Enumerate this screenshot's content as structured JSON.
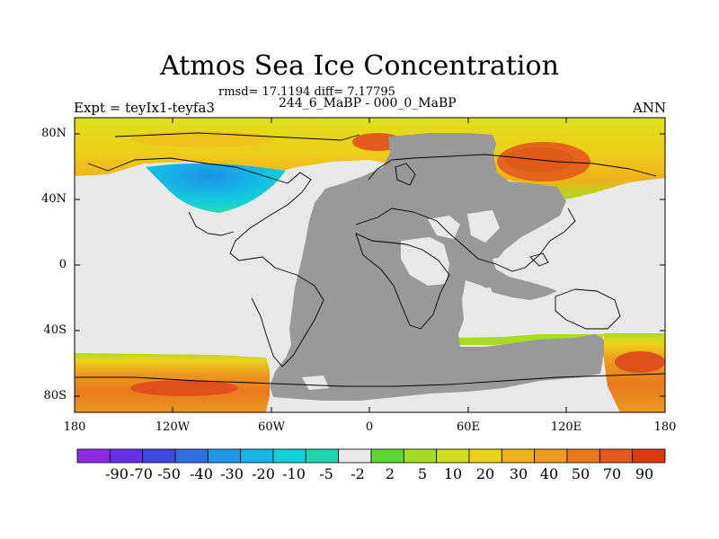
{
  "title": "Atmos Sea Ice Concentration",
  "stats": "rmsd= 17.1194 diff= 7.17795",
  "subtitle": "244_6_MaBP - 000_0_MaBP",
  "experiment": "Expt = teyIx1-teyfa3",
  "season": "ANN",
  "y_ticks": [
    "80N",
    "40N",
    "0",
    "40S",
    "80S"
  ],
  "x_ticks": [
    "180",
    "120W",
    "60W",
    "0",
    "60E",
    "120E",
    "180"
  ],
  "colorbar": {
    "labels": [
      "-90",
      "-70",
      "-50",
      "-40",
      "-30",
      "-20",
      "-10",
      "-5",
      "-2",
      "2",
      "5",
      "10",
      "20",
      "30",
      "40",
      "50",
      "70",
      "90"
    ],
    "colors": [
      "#8a2be2",
      "#6a2ee6",
      "#3f48e0",
      "#2f6fe0",
      "#1f97e6",
      "#14b7e6",
      "#12cfd8",
      "#1fd6b0",
      "#e8e8e8",
      "#5fd633",
      "#a8dc20",
      "#cfe020",
      "#ecd21a",
      "#f0b21a",
      "#ec9a20",
      "#e8781c",
      "#e45a1a",
      "#dc3a10"
    ]
  },
  "colors": {
    "land": "#999999",
    "no_change": "#e8e8e8"
  }
}
